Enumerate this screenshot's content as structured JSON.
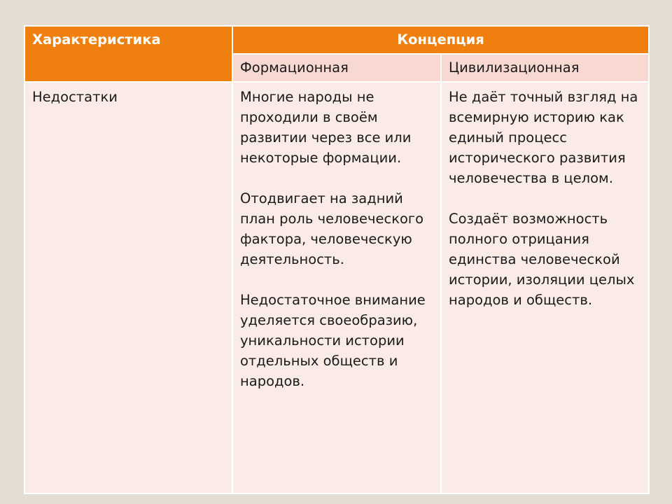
{
  "table": {
    "header": {
      "characteristic": "Характеристика",
      "concept": "Концепция"
    },
    "subheader": {
      "formational": "Формационная",
      "civilizational": "Цивилизационная"
    },
    "row": {
      "label": "Недостатки",
      "formational": [
        "Многие народы не проходили в своём развитии через все или некоторые формации.",
        "Отодвигает на задний план роль человеческого фактора, человеческую деятельность.",
        "Недостаточное внимание уделяется своеобразию, уникальности истории отдельных обществ и народов."
      ],
      "civilizational": [
        "Не даёт точный взгляд на всемирную историю как единый процесс исторического развития человечества в целом.",
        "Создаёт возможность полного отрицания единства человеческой истории, изоляции целых народов и обществ."
      ]
    }
  },
  "colors": {
    "header": "#ef7f0e",
    "subheader": "#f8d9d2",
    "body": "#fbebe7",
    "background": "#e4ddd3"
  }
}
